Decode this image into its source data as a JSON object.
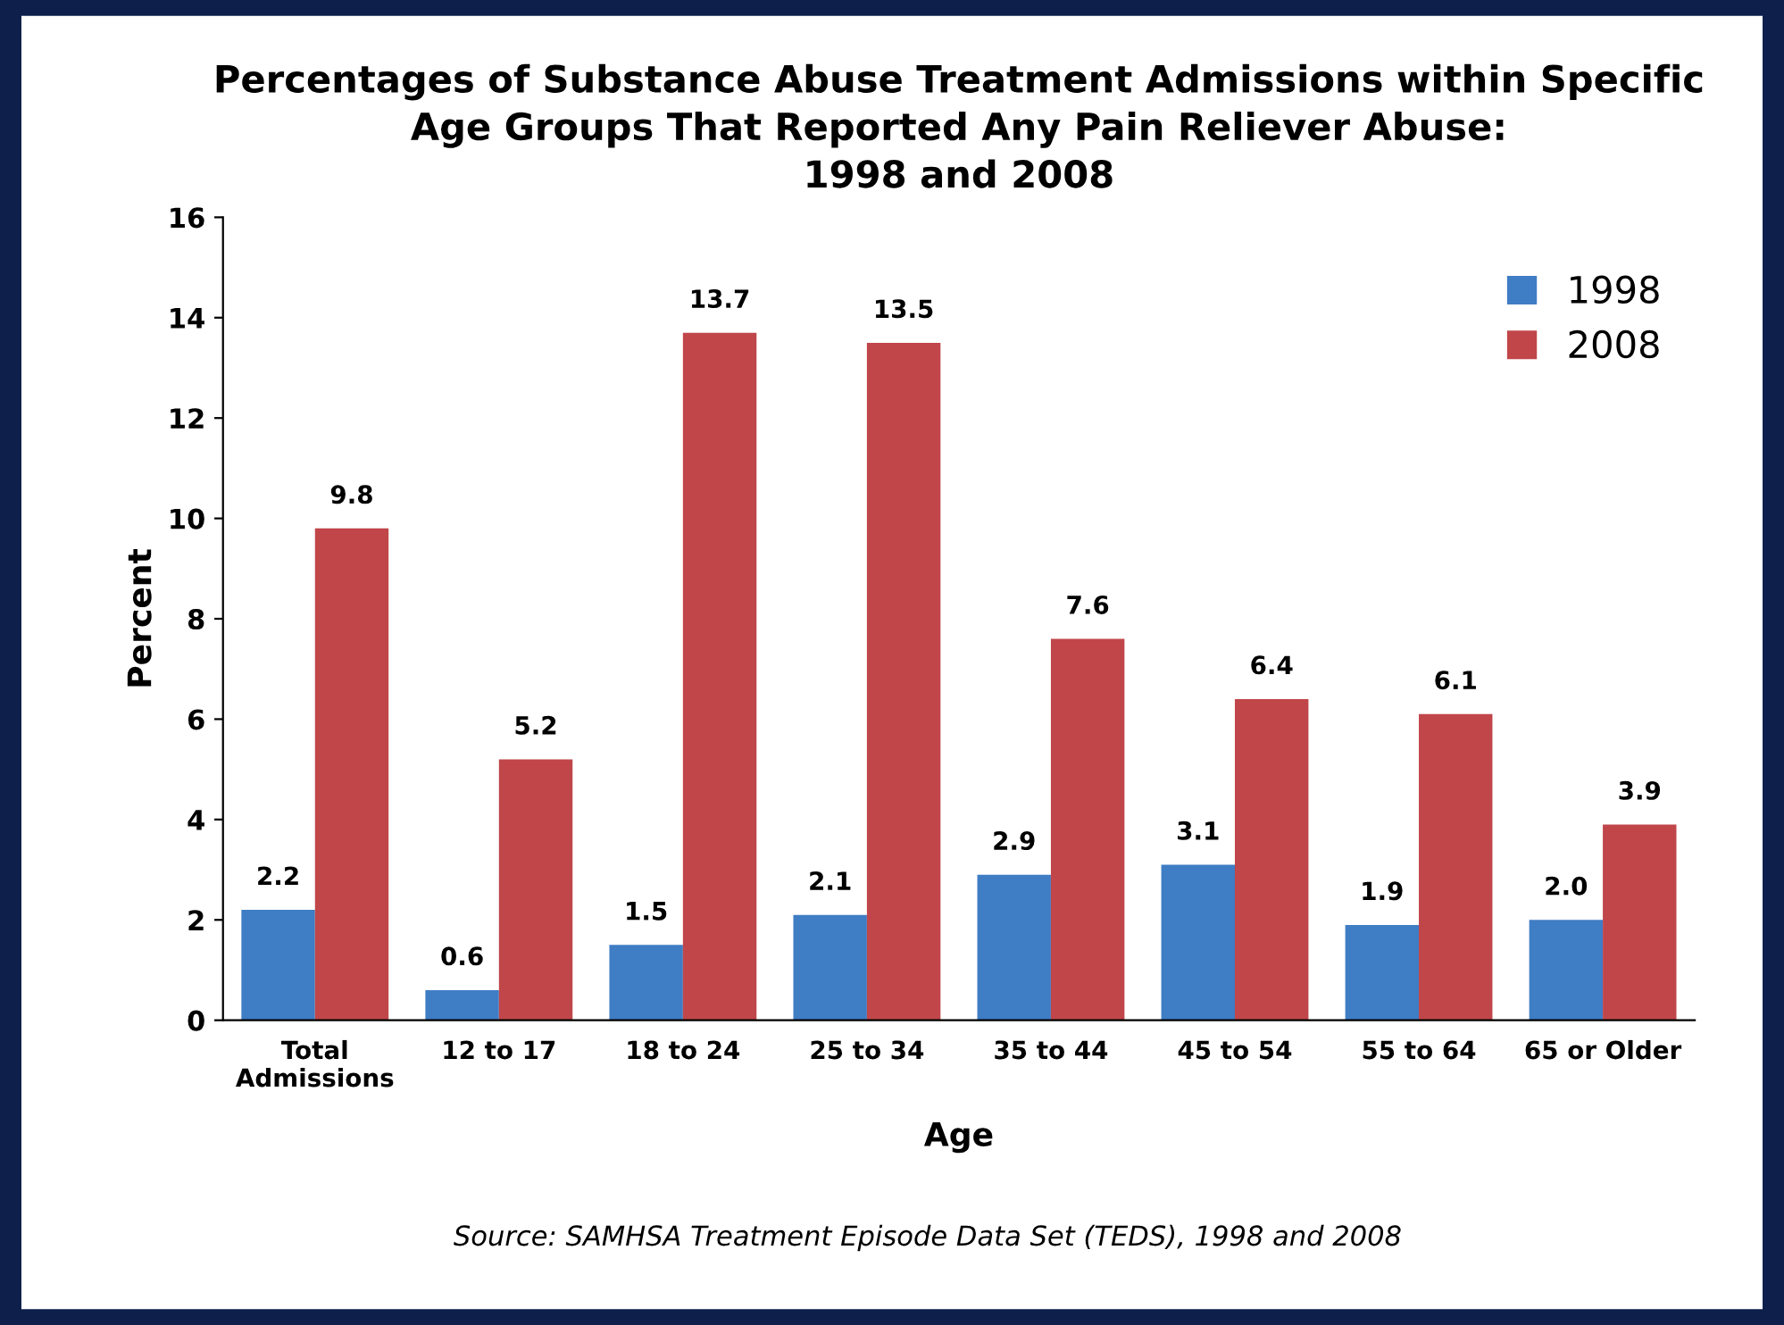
{
  "chart_data": {
    "type": "bar",
    "title": "Percentages of Substance Abuse Treatment Admissions within Specific\nAge Groups That Reported Any Pain Reliever Abuse:\n1998 and 2008",
    "xlabel": "Age",
    "ylabel": "Percent",
    "categories": [
      "Total\nAdmissions",
      "12 to 17",
      "18 to 24",
      "25 to 34",
      "35 to 44",
      "45 to 54",
      "55 to 64",
      "65 or Older"
    ],
    "series": [
      {
        "name": "1998",
        "color": "#3f7dc4",
        "values": [
          2.2,
          0.6,
          1.5,
          2.1,
          2.9,
          3.1,
          1.9,
          2.0
        ],
        "value_labels": [
          "2.2",
          "0.6",
          "1.5",
          "2.1",
          "2.9",
          "3.1",
          "1.9",
          "2.0"
        ]
      },
      {
        "name": "2008",
        "color": "#c0464a",
        "values": [
          9.8,
          5.2,
          13.7,
          13.5,
          7.6,
          6.4,
          6.1,
          3.9
        ],
        "value_labels": [
          "9.8",
          "5.2",
          "13.7",
          "13.5",
          "7.6",
          "6.4",
          "6.1",
          "3.9"
        ]
      }
    ],
    "ylim": [
      0,
      16
    ],
    "yticks": [
      0,
      2,
      4,
      6,
      8,
      10,
      12,
      14,
      16
    ],
    "legend": "top right",
    "annotations": [
      "Source: SAMHSA Treatment Episode Data Set (TEDS), 1998 and 2008"
    ]
  }
}
